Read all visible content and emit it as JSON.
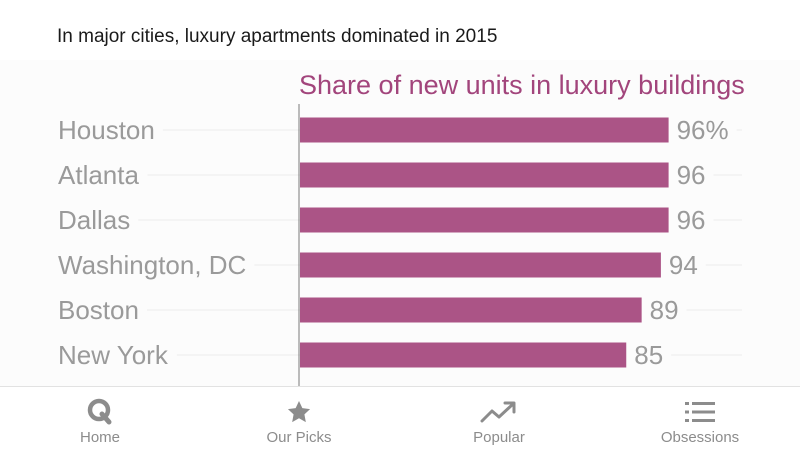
{
  "headline": "In major cities, luxury apartments dominated in 2015",
  "chart_data": {
    "type": "bar",
    "orientation": "horizontal",
    "title": "Share of new units in luxury buildings",
    "categories": [
      "Houston",
      "Atlanta",
      "Dallas",
      "Washington, DC",
      "Boston",
      "New York"
    ],
    "values": [
      96,
      96,
      96,
      94,
      89,
      85
    ],
    "value_labels": [
      "96%",
      "96",
      "96",
      "94",
      "89",
      "85"
    ],
    "unit": "%",
    "xlim": [
      0,
      100
    ],
    "grid": false,
    "bar_color": "#ab5486",
    "title_color": "#a2457c"
  },
  "tabbar": {
    "tabs": [
      {
        "label": "Home",
        "icon": "q-logo-icon"
      },
      {
        "label": "Our Picks",
        "icon": "star-icon"
      },
      {
        "label": "Popular",
        "icon": "trending-up-icon"
      },
      {
        "label": "Obsessions",
        "icon": "list-icon"
      }
    ]
  }
}
